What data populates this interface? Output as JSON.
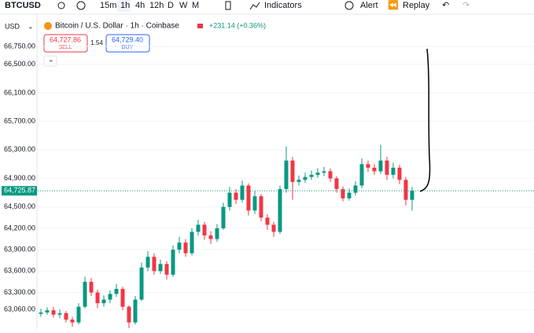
{
  "toolbar": {
    "symbol": "BTCUSD",
    "intervals": [
      "15m",
      "1h",
      "4h",
      "12h",
      "D",
      "W",
      "M"
    ],
    "indicators": "Indicators",
    "alert": "Alert",
    "replay": "Replay"
  },
  "header": {
    "currency": "USD",
    "title": "Bitcoin / U.S. Dollar · 1h · Coinbase",
    "change": "+231.14 (+0.36%)",
    "sell_price": "64,727.86",
    "sell": "SELL",
    "spread": "1.54",
    "buy_price": "64,729.40",
    "buy": "BUY"
  },
  "chart_data": {
    "type": "candlestick",
    "up_color": "#089981",
    "down_color": "#f23645",
    "grid": true,
    "ylim": [
      62787,
      66960
    ],
    "yticks": [
      {
        "value": 66750,
        "label": "66,750.00"
      },
      {
        "value": 66500,
        "label": "66,500.00"
      },
      {
        "value": 66100,
        "label": "66,100.00"
      },
      {
        "value": 65700,
        "label": "65,700.00"
      },
      {
        "value": 65300,
        "label": "65,300.00"
      },
      {
        "value": 64900,
        "label": "64,900.00"
      },
      {
        "value": 64500,
        "label": "64,500.00"
      },
      {
        "value": 64200,
        "label": "64,200.00"
      },
      {
        "value": 63900,
        "label": "63,900.00"
      },
      {
        "value": 63600,
        "label": "63,600.00"
      },
      {
        "value": 63300,
        "label": "63,300.00"
      },
      {
        "value": 63060,
        "label": "63,060.00"
      }
    ],
    "last_price": {
      "value": 64725.87,
      "label": "64,725.87"
    },
    "open": [
      63000,
      63020,
      63050,
      62990,
      63010,
      62920,
      62880,
      63100,
      63450,
      63300,
      63150,
      63200,
      63280,
      63350,
      63100,
      62880,
      63200,
      63650,
      63800,
      63600,
      63700,
      63550,
      63900,
      64000,
      63850,
      64150,
      64250,
      64100,
      64050,
      64200,
      64500,
      64700,
      64600,
      64800,
      64450,
      64650,
      64350,
      64250,
      64150,
      64750,
      65150,
      64850,
      64880,
      64920,
      64950,
      64980,
      65000,
      64900,
      64750,
      64620,
      64700,
      64800,
      65100,
      65050,
      65000,
      65150,
      64950,
      65050,
      64880,
      64600
    ],
    "high": [
      63070,
      63090,
      63100,
      63060,
      63040,
      62960,
      63150,
      63520,
      63500,
      63340,
      63260,
      63330,
      63420,
      63380,
      63120,
      63250,
      63720,
      63880,
      63850,
      63760,
      63740,
      63960,
      64080,
      64050,
      64200,
      64320,
      64290,
      64160,
      64260,
      64560,
      64780,
      64750,
      64870,
      64830,
      64720,
      64680,
      64400,
      64290,
      64800,
      65350,
      65200,
      64940,
      64980,
      65010,
      65040,
      65060,
      65040,
      64930,
      64790,
      64760,
      64860,
      65180,
      65150,
      65100,
      65370,
      65200,
      65120,
      65090,
      64920,
      64780
    ],
    "low": [
      62960,
      62990,
      62950,
      62940,
      62880,
      62820,
      62850,
      63080,
      63250,
      63080,
      63100,
      63150,
      63240,
      63050,
      62800,
      62850,
      63180,
      63600,
      63550,
      63560,
      63480,
      63520,
      63850,
      63800,
      63820,
      64100,
      64040,
      63980,
      64010,
      64180,
      64450,
      64540,
      64560,
      64380,
      64400,
      64300,
      64180,
      64080,
      64120,
      64700,
      64600,
      64800,
      64840,
      64880,
      64910,
      64930,
      64850,
      64700,
      64580,
      64590,
      64660,
      64760,
      64990,
      64950,
      64960,
      64880,
      64900,
      64820,
      64520,
      64450
    ],
    "close": [
      63020,
      63050,
      62990,
      63010,
      62920,
      62880,
      63100,
      63450,
      63300,
      63150,
      63200,
      63280,
      63350,
      63100,
      62880,
      63200,
      63650,
      63800,
      63600,
      63700,
      63550,
      63900,
      64000,
      63850,
      64150,
      64250,
      64100,
      64050,
      64200,
      64500,
      64700,
      64600,
      64800,
      64450,
      64650,
      64350,
      64250,
      64150,
      64750,
      65150,
      64850,
      64880,
      64920,
      64950,
      64980,
      65000,
      64900,
      64750,
      64620,
      64700,
      64800,
      65100,
      65050,
      65000,
      65150,
      64950,
      65050,
      64880,
      64600,
      64726
    ]
  }
}
